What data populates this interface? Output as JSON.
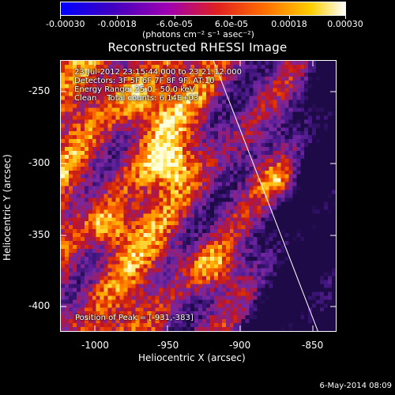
{
  "colorbar": {
    "tick_labels": [
      "-0.00030",
      "-0.00018",
      "-6.0e-05",
      "6.0e-05",
      "0.00018",
      "0.00030"
    ],
    "units": "(photons cm⁻² s⁻¹ asec⁻²)",
    "colors": [
      "#0000ff",
      "#a000b0",
      "#d02040",
      "#ff6000",
      "#ffc000",
      "#ffffff"
    ]
  },
  "title": "Reconstructed RHESSI Image",
  "info": {
    "time_range": "23-Jul-2012 23:15:44.000 to 23:21:12.000",
    "detectors": "Detectors: 3F 5F 6F 7F 8F 9F, AT:10",
    "energy_range": "Energy Range: 25.0 - 50.0 keV",
    "algorithm": "Clean    Total counts: 6.14E+03"
  },
  "peak": "Position of Peak = [-931,-383]",
  "axes": {
    "xlabel": "Heliocentric X (arcsec)",
    "ylabel": "Heliocentric Y (arcsec)",
    "xticks": [
      "-1000",
      "-950",
      "-900",
      "-850"
    ],
    "yticks": [
      "-250",
      "-300",
      "-350",
      "-400"
    ],
    "xlim": [
      -1022,
      -832
    ],
    "ylim": [
      -420,
      -235
    ]
  },
  "limb_line": {
    "color": "#ffffff",
    "x_start": -917,
    "y_start": -235,
    "x_end": -845,
    "y_end": -420
  },
  "timestamp": "6-May-2014 08:09"
}
